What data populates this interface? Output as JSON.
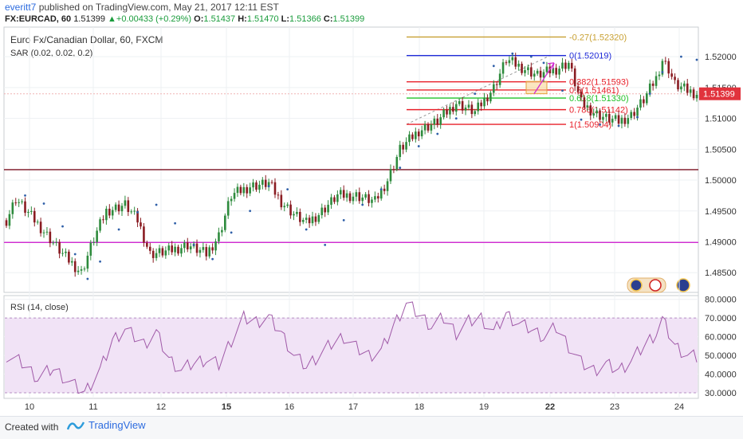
{
  "header": {
    "user": "everitt7",
    "published": "published on TradingView.com, May 21, 2017 12:11 EST",
    "symbol": "FX:EURCAD, 60",
    "last": "1.51399",
    "change": "+0.00433 (+0.29%)",
    "open_label": "O:",
    "open": "1.51437",
    "high_label": "H:",
    "high": "1.51470",
    "low_label": "L:",
    "low": "1.51366",
    "close_label": "C:",
    "close": "1.51399"
  },
  "legend": {
    "title": "Euro Fx/Canadian Dollar, 60, FXCM",
    "sar": "SAR (0.02, 0.02, 0.2)",
    "rsi": "RSI (14, close)"
  },
  "footer": {
    "created_with": "Created with",
    "brand": "TradingView"
  },
  "colors": {
    "bull": "#2e8b3d",
    "bear": "#8a1c22",
    "sar": "#2f5fa8",
    "fib_gold": "#c8a032",
    "fib_blue": "#1f2ad8",
    "fib_red": "#e8202a",
    "fib_green": "#22c22a",
    "h_maroon": "#7a1020",
    "h_magenta": "#d22ad2",
    "rsi_line": "#a05aa8",
    "rsi_band": "#f1e3f6",
    "price_tag": "#e1333d"
  },
  "chart_data": [
    {
      "type": "candlestick",
      "title": "Euro Fx/Canadian Dollar, 60, FXCM",
      "x_ticks": [
        "10",
        "11",
        "12",
        "15",
        "16",
        "17",
        "18",
        "19",
        "22",
        "23",
        "24"
      ],
      "y_ticks": [
        "1.52000",
        "1.51500",
        "1.51000",
        "1.50500",
        "1.50000",
        "1.49500",
        "1.49000",
        "1.48500"
      ],
      "ylim": [
        1.4818,
        1.5248
      ],
      "last_price": "1.51399",
      "price_path_keypoints": [
        [
          0,
          1.4935
        ],
        [
          3,
          1.497
        ],
        [
          9,
          1.4935
        ],
        [
          14,
          1.4905
        ],
        [
          18,
          1.488
        ],
        [
          24,
          1.485
        ],
        [
          28,
          1.4905
        ],
        [
          32,
          1.495
        ],
        [
          38,
          1.496
        ],
        [
          42,
          1.4935
        ],
        [
          46,
          1.488
        ],
        [
          52,
          1.4885
        ],
        [
          58,
          1.4895
        ],
        [
          64,
          1.488
        ],
        [
          68,
          1.491
        ],
        [
          72,
          1.4975
        ],
        [
          78,
          1.499
        ],
        [
          84,
          1.4995
        ],
        [
          88,
          1.4965
        ],
        [
          92,
          1.4945
        ],
        [
          96,
          1.493
        ],
        [
          100,
          1.4945
        ],
        [
          106,
          1.4975
        ],
        [
          112,
          1.4975
        ],
        [
          118,
          1.4965
        ],
        [
          122,
          1.5
        ],
        [
          126,
          1.505
        ],
        [
          132,
          1.508
        ],
        [
          138,
          1.5095
        ],
        [
          144,
          1.5125
        ],
        [
          150,
          1.511
        ],
        [
          156,
          1.515
        ],
        [
          160,
          1.5195
        ],
        [
          164,
          1.5185
        ],
        [
          170,
          1.517
        ],
        [
          176,
          1.518
        ],
        [
          180,
          1.519
        ],
        [
          184,
          1.5125
        ],
        [
          188,
          1.511
        ],
        [
          192,
          1.51
        ],
        [
          196,
          1.5095
        ],
        [
          200,
          1.5105
        ],
        [
          204,
          1.513
        ],
        [
          208,
          1.5165
        ],
        [
          210,
          1.5195
        ],
        [
          212,
          1.518
        ],
        [
          214,
          1.5155
        ],
        [
          218,
          1.5145
        ],
        [
          221,
          1.514
        ]
      ],
      "sar_dots": [
        [
          6,
          1.4975
        ],
        [
          12,
          1.4962
        ],
        [
          18,
          1.4925
        ],
        [
          22,
          1.488
        ],
        [
          26,
          1.484
        ],
        [
          30,
          1.4868
        ],
        [
          36,
          1.492
        ],
        [
          42,
          1.4948
        ],
        [
          48,
          1.496
        ],
        [
          54,
          1.493
        ],
        [
          60,
          1.4895
        ],
        [
          66,
          1.4872
        ],
        [
          72,
          1.4915
        ],
        [
          78,
          1.495
        ],
        [
          84,
          1.499
        ],
        [
          90,
          1.4985
        ],
        [
          96,
          1.492
        ],
        [
          102,
          1.4895
        ],
        [
          108,
          1.4935
        ],
        [
          114,
          1.496
        ],
        [
          120,
          1.4985
        ],
        [
          126,
          1.502
        ],
        [
          132,
          1.5055
        ],
        [
          138,
          1.5075
        ],
        [
          144,
          1.51
        ],
        [
          150,
          1.514
        ],
        [
          156,
          1.5185
        ],
        [
          162,
          1.5205
        ],
        [
          168,
          1.52
        ],
        [
          172,
          1.519
        ],
        [
          178,
          1.5145
        ],
        [
          184,
          1.5098
        ],
        [
          190,
          1.509
        ],
        [
          196,
          1.5088
        ],
        [
          202,
          1.5102
        ],
        [
          206,
          1.514
        ],
        [
          210,
          1.5175
        ],
        [
          216,
          1.52
        ],
        [
          221,
          1.5195
        ]
      ],
      "fibonacci": [
        {
          "label": "-0.27(1.52320)",
          "value": 1.5232,
          "color": "gold"
        },
        {
          "label": "0(1.52019)",
          "value": 1.52019,
          "color": "blue"
        },
        {
          "label": "0.382(1.51593)",
          "value": 1.51593,
          "color": "red"
        },
        {
          "label": "0.5(1.51461)",
          "value": 1.51461,
          "color": "red"
        },
        {
          "label": "0.618(1.51330)",
          "value": 1.5133,
          "color": "green"
        },
        {
          "label": "0.786(1.51142)",
          "value": 1.51142,
          "color": "red"
        },
        {
          "label": "1(1.50904)",
          "value": 1.50904,
          "color": "red"
        }
      ],
      "horizontal_lines": [
        {
          "value": 1.5017,
          "color": "maroon"
        },
        {
          "value": 1.4899,
          "color": "magenta"
        }
      ]
    },
    {
      "type": "line",
      "title": "RSI (14, close)",
      "y_ticks": [
        "80.0000",
        "70.0000",
        "60.0000",
        "50.0000",
        "40.0000",
        "30.0000"
      ],
      "ylim": [
        27,
        82
      ],
      "band": [
        30,
        70
      ],
      "rsi_keypoints": [
        [
          0,
          50
        ],
        [
          5,
          46
        ],
        [
          10,
          38
        ],
        [
          15,
          43
        ],
        [
          20,
          36
        ],
        [
          25,
          30
        ],
        [
          30,
          42
        ],
        [
          34,
          58
        ],
        [
          38,
          64
        ],
        [
          44,
          56
        ],
        [
          48,
          62
        ],
        [
          52,
          48
        ],
        [
          56,
          42
        ],
        [
          60,
          46
        ],
        [
          64,
          48
        ],
        [
          68,
          45
        ],
        [
          72,
          58
        ],
        [
          76,
          70
        ],
        [
          80,
          68
        ],
        [
          84,
          70
        ],
        [
          88,
          62
        ],
        [
          92,
          50
        ],
        [
          96,
          44
        ],
        [
          100,
          50
        ],
        [
          104,
          56
        ],
        [
          108,
          60
        ],
        [
          112,
          54
        ],
        [
          116,
          50
        ],
        [
          120,
          52
        ],
        [
          124,
          66
        ],
        [
          128,
          78
        ],
        [
          132,
          72
        ],
        [
          136,
          66
        ],
        [
          140,
          70
        ],
        [
          144,
          62
        ],
        [
          148,
          68
        ],
        [
          152,
          70
        ],
        [
          156,
          62
        ],
        [
          160,
          72
        ],
        [
          164,
          67
        ],
        [
          168,
          64
        ],
        [
          172,
          60
        ],
        [
          176,
          65
        ],
        [
          180,
          55
        ],
        [
          184,
          46
        ],
        [
          188,
          42
        ],
        [
          192,
          45
        ],
        [
          196,
          42
        ],
        [
          200,
          47
        ],
        [
          204,
          55
        ],
        [
          208,
          62
        ],
        [
          210,
          69
        ],
        [
          214,
          55
        ],
        [
          218,
          50
        ],
        [
          221,
          49
        ]
      ]
    }
  ]
}
